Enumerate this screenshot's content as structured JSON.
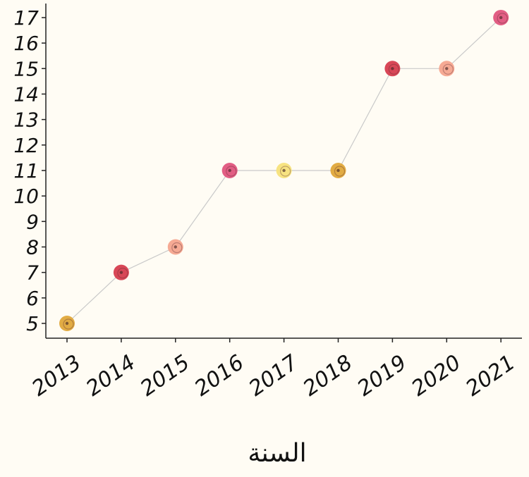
{
  "chart_data": {
    "type": "line",
    "title": "",
    "xlabel": "السنة",
    "ylabel": "",
    "x": [
      "2013",
      "2014",
      "2015",
      "2016",
      "2017",
      "2018",
      "2019",
      "2020",
      "2021"
    ],
    "values": [
      5,
      7,
      8,
      11,
      11,
      11,
      15,
      15,
      17
    ],
    "ylim": [
      5,
      17
    ],
    "y_ticks": [
      5,
      6,
      7,
      8,
      9,
      10,
      11,
      12,
      13,
      14,
      15,
      16,
      17
    ],
    "grid": false,
    "line_color": "#c9c9c9",
    "marker_colors": [
      "#e0a83a",
      "#d63d4e",
      "#f5a58e",
      "#e0557d",
      "#f7e27a",
      "#e0a83a",
      "#d63d4e",
      "#f5a58e",
      "#e0557d"
    ],
    "background": "#fffcf4"
  }
}
